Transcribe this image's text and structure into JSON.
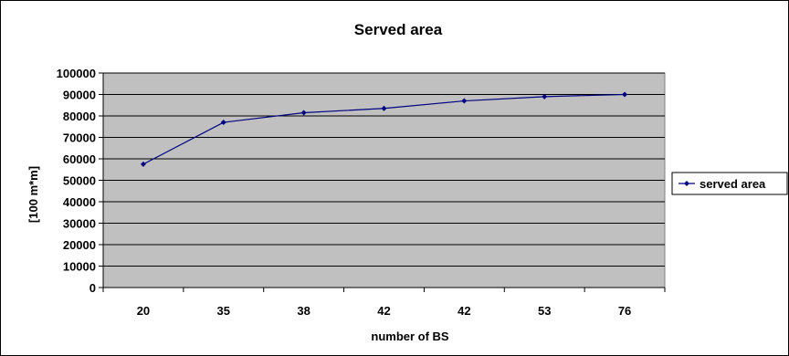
{
  "chart_data": {
    "type": "line",
    "title": "Served area",
    "xlabel": "number of BS",
    "ylabel": "[100 m*m]",
    "categories": [
      "20",
      "35",
      "38",
      "42",
      "42",
      "53",
      "76"
    ],
    "series": [
      {
        "name": "served area",
        "values": [
          57500,
          77000,
          81500,
          83500,
          87000,
          89000,
          90000
        ]
      }
    ],
    "ylim": [
      0,
      100000
    ],
    "yticks": [
      0,
      10000,
      20000,
      30000,
      40000,
      50000,
      60000,
      70000,
      80000,
      90000,
      100000
    ],
    "grid": true,
    "legend": "right",
    "colors": {
      "plot_background": "#c0c0c0",
      "series": "#000080",
      "gridline": "#000000"
    }
  }
}
